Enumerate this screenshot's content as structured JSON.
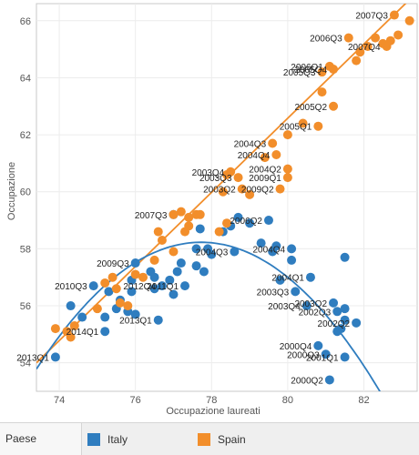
{
  "chart_data": {
    "type": "scatter",
    "title": "",
    "xlabel": "Occupazione laureati",
    "ylabel": "Occupazione",
    "xlim": [
      73.4,
      83.4
    ],
    "ylim": [
      53.0,
      66.6
    ],
    "xticks": [
      "74",
      "76",
      "78",
      "80",
      "82"
    ],
    "yticks": [
      "54",
      "56",
      "58",
      "60",
      "62",
      "64",
      "66"
    ],
    "grid": true,
    "legend": {
      "title": "Paese",
      "position": "bottom"
    },
    "series": [
      {
        "name": "Italy",
        "color": "#2f7dbf",
        "points": [
          {
            "x": 73.9,
            "y": 54.2,
            "label": "2013Q1"
          },
          {
            "x": 74.3,
            "y": 56.0
          },
          {
            "x": 74.6,
            "y": 55.6
          },
          {
            "x": 75.2,
            "y": 55.6
          },
          {
            "x": 74.9,
            "y": 56.7,
            "label": "2010Q3"
          },
          {
            "x": 75.5,
            "y": 55.9
          },
          {
            "x": 75.2,
            "y": 55.1,
            "label": "2014Q1"
          },
          {
            "x": 75.3,
            "y": 56.5
          },
          {
            "x": 75.6,
            "y": 56.2
          },
          {
            "x": 75.9,
            "y": 56.5
          },
          {
            "x": 75.8,
            "y": 55.8
          },
          {
            "x": 76.0,
            "y": 55.7
          },
          {
            "x": 75.9,
            "y": 56.9
          },
          {
            "x": 76.0,
            "y": 57.5,
            "label": "2009Q3"
          },
          {
            "x": 76.4,
            "y": 57.2
          },
          {
            "x": 76.5,
            "y": 56.6
          },
          {
            "x": 76.5,
            "y": 57.0
          },
          {
            "x": 76.7,
            "y": 56.7,
            "label": "2012Q4"
          },
          {
            "x": 76.6,
            "y": 55.5,
            "label": "2013Q1"
          },
          {
            "x": 76.9,
            "y": 56.9
          },
          {
            "x": 77.1,
            "y": 57.2
          },
          {
            "x": 77.2,
            "y": 57.5
          },
          {
            "x": 77.0,
            "y": 56.4
          },
          {
            "x": 77.3,
            "y": 56.7,
            "label": "2011Q1"
          },
          {
            "x": 77.6,
            "y": 57.4
          },
          {
            "x": 77.6,
            "y": 58.0
          },
          {
            "x": 77.8,
            "y": 57.2
          },
          {
            "x": 77.9,
            "y": 58.0
          },
          {
            "x": 77.7,
            "y": 58.7
          },
          {
            "x": 78.0,
            "y": 57.8
          },
          {
            "x": 78.3,
            "y": 58.6
          },
          {
            "x": 78.5,
            "y": 58.8
          },
          {
            "x": 78.6,
            "y": 57.9,
            "label": "2004Q3"
          },
          {
            "x": 78.7,
            "y": 59.1
          },
          {
            "x": 79.0,
            "y": 58.9
          },
          {
            "x": 79.3,
            "y": 58.2
          },
          {
            "x": 79.6,
            "y": 57.9
          },
          {
            "x": 79.7,
            "y": 58.1
          },
          {
            "x": 79.5,
            "y": 59.0,
            "label": "2006Q2"
          },
          {
            "x": 79.8,
            "y": 56.9
          },
          {
            "x": 80.2,
            "y": 56.5,
            "label": "2003Q3"
          },
          {
            "x": 80.5,
            "y": 56.0,
            "label": "2003Q4"
          },
          {
            "x": 80.1,
            "y": 57.6
          },
          {
            "x": 80.1,
            "y": 58.0,
            "label": "2004Q4"
          },
          {
            "x": 80.6,
            "y": 57.0,
            "label": "2004Q1"
          },
          {
            "x": 80.8,
            "y": 54.6,
            "label": "2000Q4"
          },
          {
            "x": 81.0,
            "y": 54.3,
            "label": "2000Q3"
          },
          {
            "x": 81.1,
            "y": 53.4,
            "label": "2000Q2"
          },
          {
            "x": 81.3,
            "y": 55.1
          },
          {
            "x": 81.2,
            "y": 56.1,
            "label": "2003Q2"
          },
          {
            "x": 81.4,
            "y": 55.2
          },
          {
            "x": 81.5,
            "y": 55.5
          },
          {
            "x": 81.5,
            "y": 55.9
          },
          {
            "x": 81.3,
            "y": 55.8,
            "label": "2002Q3"
          },
          {
            "x": 81.8,
            "y": 55.4,
            "label": "2002Q2"
          },
          {
            "x": 81.5,
            "y": 54.2,
            "label": "2001Q1"
          },
          {
            "x": 81.5,
            "y": 57.7
          },
          {
            "x": 77.0,
            "y": 59.2,
            "label": "2007Q3"
          }
        ]
      },
      {
        "name": "Spain",
        "color": "#f28e2b",
        "points": [
          {
            "x": 73.9,
            "y": 55.2
          },
          {
            "x": 74.2,
            "y": 55.1
          },
          {
            "x": 74.4,
            "y": 55.3
          },
          {
            "x": 74.3,
            "y": 54.9
          },
          {
            "x": 75.0,
            "y": 55.9
          },
          {
            "x": 75.2,
            "y": 56.8
          },
          {
            "x": 75.4,
            "y": 57.0
          },
          {
            "x": 75.5,
            "y": 56.6
          },
          {
            "x": 75.6,
            "y": 56.1
          },
          {
            "x": 75.8,
            "y": 56.0
          },
          {
            "x": 76.0,
            "y": 57.1
          },
          {
            "x": 76.2,
            "y": 57.0
          },
          {
            "x": 76.5,
            "y": 57.6
          },
          {
            "x": 76.7,
            "y": 58.3
          },
          {
            "x": 76.6,
            "y": 58.6
          },
          {
            "x": 77.0,
            "y": 57.9
          },
          {
            "x": 77.0,
            "y": 59.2
          },
          {
            "x": 77.2,
            "y": 59.3
          },
          {
            "x": 77.3,
            "y": 58.6
          },
          {
            "x": 77.4,
            "y": 58.8
          },
          {
            "x": 77.6,
            "y": 59.2
          },
          {
            "x": 77.7,
            "y": 59.2
          },
          {
            "x": 77.4,
            "y": 59.1
          },
          {
            "x": 78.2,
            "y": 58.6
          },
          {
            "x": 78.4,
            "y": 58.9
          },
          {
            "x": 78.3,
            "y": 60.0
          },
          {
            "x": 78.4,
            "y": 60.6
          },
          {
            "x": 78.7,
            "y": 60.5,
            "label": "2003Q3"
          },
          {
            "x": 78.5,
            "y": 60.7,
            "label": "2003Q4"
          },
          {
            "x": 78.8,
            "y": 60.1,
            "label": "2003Q2"
          },
          {
            "x": 79.0,
            "y": 59.9
          },
          {
            "x": 79.4,
            "y": 61.2
          },
          {
            "x": 79.6,
            "y": 61.7,
            "label": "2004Q3"
          },
          {
            "x": 79.7,
            "y": 61.3,
            "label": "2004Q4"
          },
          {
            "x": 79.8,
            "y": 60.1,
            "label": "2009Q2"
          },
          {
            "x": 80.0,
            "y": 62.0
          },
          {
            "x": 80.0,
            "y": 60.8,
            "label": "2004Q2"
          },
          {
            "x": 80.0,
            "y": 60.5,
            "label": "2009Q1"
          },
          {
            "x": 80.4,
            "y": 62.4
          },
          {
            "x": 80.8,
            "y": 62.3,
            "label": "2005Q1"
          },
          {
            "x": 81.2,
            "y": 63.0,
            "label": "2005Q2"
          },
          {
            "x": 80.9,
            "y": 63.5
          },
          {
            "x": 80.9,
            "y": 64.2,
            "label": "2005Q3"
          },
          {
            "x": 81.2,
            "y": 64.3,
            "label": "2005Q4"
          },
          {
            "x": 81.1,
            "y": 64.4,
            "label": "2006Q1"
          },
          {
            "x": 81.6,
            "y": 65.4,
            "label": "2006Q3"
          },
          {
            "x": 81.8,
            "y": 64.6
          },
          {
            "x": 81.9,
            "y": 64.9
          },
          {
            "x": 82.1,
            "y": 65.1
          },
          {
            "x": 82.3,
            "y": 65.4
          },
          {
            "x": 82.5,
            "y": 65.2
          },
          {
            "x": 82.6,
            "y": 65.1,
            "label": "2007Q4"
          },
          {
            "x": 82.7,
            "y": 65.3
          },
          {
            "x": 82.9,
            "y": 65.5
          },
          {
            "x": 82.8,
            "y": 66.2,
            "label": "2007Q3"
          },
          {
            "x": 83.2,
            "y": 66.0
          }
        ]
      }
    ],
    "trend_lines": [
      {
        "series": "Spain",
        "kind": "linear",
        "color": "#f28e2b",
        "points": [
          [
            73.4,
            54.0
          ],
          [
            83.4,
            67.0
          ]
        ]
      },
      {
        "series": "Italy",
        "kind": "polynomial",
        "color": "#2f7dbf",
        "coeffs": [
          -0.2375,
          36.92,
          -1376.6
        ]
      }
    ]
  }
}
